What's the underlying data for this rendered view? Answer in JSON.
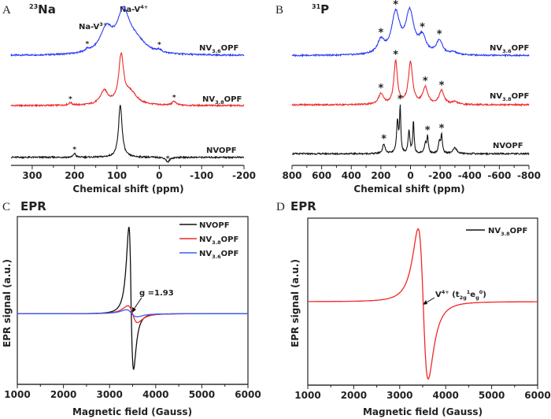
{
  "chart_data": [
    {
      "panel": "A",
      "type": "line",
      "title": {
        "sup": "23",
        "main": "Na"
      },
      "xlabel": "Chemical shift (ppm)",
      "ylabel": "",
      "xlim": [
        350,
        -200
      ],
      "xticks": [
        "300",
        "200",
        "100",
        "0",
        "-100",
        "-200"
      ],
      "xtick_values": [
        300,
        200,
        100,
        0,
        -100,
        -200
      ],
      "grid": false,
      "annotations": [
        {
          "main": "Na-V",
          "sup": "3+",
          "x": 125
        },
        {
          "main": "Na-V",
          "sup": "4+",
          "x": 85
        }
      ],
      "series": [
        {
          "label": {
            "main": "NV",
            "sub": "3.6",
            "tail": "OPF"
          },
          "color": "#2b3cf5",
          "offset": 6.8,
          "peaks": [
            [
              125,
              1.45,
              18
            ],
            [
              85,
              2.35,
              17
            ],
            [
              58,
              0.8,
              30
            ],
            [
              170,
              0.15,
              5
            ],
            [
              0,
              0.15,
              5
            ]
          ],
          "stars_ppm": [
            170,
            0
          ]
        },
        {
          "label": {
            "main": "NV",
            "sub": "3.8",
            "tail": "OPF"
          },
          "color": "#f02828",
          "offset": 3.7,
          "peaks": [
            [
              130,
              0.85,
              11
            ],
            [
              90,
              2.9,
              7
            ],
            [
              68,
              0.75,
              18
            ],
            [
              210,
              0.15,
              5
            ],
            [
              -35,
              0.25,
              5
            ]
          ],
          "stars_ppm": [
            210,
            -35
          ]
        },
        {
          "label": {
            "main": "NVOPF",
            "sub": "",
            "tail": ""
          },
          "color": "#111111",
          "offset": 0.5,
          "peaks": [
            [
              92,
              3.25,
              5
            ],
            [
              200,
              0.25,
              3
            ],
            [
              -20,
              -0.3,
              5
            ]
          ],
          "stars_ppm": [
            200,
            -20
          ]
        }
      ]
    },
    {
      "panel": "B",
      "type": "line",
      "title": {
        "sup": "31",
        "main": "P"
      },
      "xlabel": "Chemical shift (ppm)",
      "ylabel": "",
      "xlim": [
        800,
        -800
      ],
      "xticks": [
        "800",
        "600",
        "400",
        "200",
        "0",
        "-200",
        "-400",
        "-600",
        "-800"
      ],
      "xtick_values": [
        800,
        600,
        400,
        200,
        0,
        -200,
        -400,
        -600,
        -800
      ],
      "grid": false,
      "series": [
        {
          "label": {
            "main": "NV",
            "sub": "3.6",
            "tail": "OPF"
          },
          "color": "#2b3cf5",
          "offset": 6.8,
          "peaks": [
            [
              200,
              0.8,
              28
            ],
            [
              100,
              2.5,
              33
            ],
            [
              5,
              2.55,
              33
            ],
            [
              -80,
              1.0,
              28
            ],
            [
              -195,
              0.85,
              25
            ],
            [
              -290,
              0.15,
              25
            ]
          ],
          "stars_ppm": [
            200,
            100,
            -80,
            -195
          ]
        },
        {
          "label": {
            "main": "NV",
            "sub": "3.8",
            "tail": "OPF"
          },
          "color": "#f02828",
          "offset": 3.75,
          "peaks": [
            [
              200,
              0.65,
              20
            ],
            [
              100,
              2.7,
              14
            ],
            [
              0,
              2.6,
              17
            ],
            [
              -100,
              1.05,
              20
            ],
            [
              -210,
              0.85,
              20
            ],
            [
              -300,
              0.15,
              25
            ]
          ],
          "stars_ppm": [
            200,
            100,
            -100,
            -210
          ]
        },
        {
          "label": {
            "main": "NVOPF",
            "sub": "",
            "tail": ""
          },
          "color": "#111111",
          "offset": 0.72,
          "peaks": [
            [
              180,
              0.6,
              10
            ],
            [
              88,
              2.0,
              7
            ],
            [
              70,
              2.8,
              5
            ],
            [
              10,
              1.4,
              7
            ],
            [
              -20,
              2.0,
              5
            ],
            [
              -100,
              0.6,
              8
            ],
            [
              -115,
              1.0,
              6
            ],
            [
              -195,
              0.7,
              8
            ],
            [
              -210,
              1.1,
              6
            ],
            [
              -300,
              0.35,
              15
            ]
          ],
          "stars_ppm": [
            180,
            70,
            -115,
            -210
          ]
        }
      ]
    },
    {
      "panel": "C",
      "type": "line",
      "title": "EPR",
      "xlabel": "Magnetic field (Gauss)",
      "ylabel": "EPR signal (a.u.)",
      "xlim": [
        1000,
        6000
      ],
      "ylim": [
        -0.8,
        1.1
      ],
      "xticks": [
        "1000",
        "2000",
        "3000",
        "4000",
        "5000",
        "6000"
      ],
      "xtick_values": [
        1000,
        2000,
        3000,
        4000,
        5000,
        6000
      ],
      "grid": false,
      "legend": "top-right",
      "annotation": "g =1.93",
      "series": [
        {
          "label": {
            "main": "NVOPF",
            "sub": "",
            "tail": ""
          },
          "color": "#111111",
          "center": 3470,
          "linewidth_gauss": 87,
          "max": 0.98,
          "min": -0.63
        },
        {
          "label": {
            "main": "NV",
            "sub": "3.8",
            "tail": "OPF"
          },
          "color": "#f02828",
          "center": 3500,
          "linewidth_gauss": 180,
          "max": 0.09,
          "min": -0.1
        },
        {
          "label": {
            "main": "NV",
            "sub": "3.6",
            "tail": "OPF"
          },
          "color": "#3b5cf5",
          "center": 3480,
          "linewidth_gauss": 200,
          "max": 0.045,
          "min": -0.035
        }
      ]
    },
    {
      "panel": "D",
      "type": "line",
      "title": "EPR",
      "xlabel": "Magnetic field (Gauss)",
      "ylabel": "EPR signal (a.u.)",
      "xlim": [
        1000,
        6000
      ],
      "ylim": [
        -1.1,
        1.1
      ],
      "xticks": [
        "1000",
        "2000",
        "3000",
        "4000",
        "5000",
        "6000"
      ],
      "xtick_values": [
        1000,
        2000,
        3000,
        4000,
        5000,
        6000
      ],
      "grid": false,
      "legend": "top-right",
      "annotation": {
        "main": "V",
        "sup": "4+",
        "paren_open": " (t",
        "sub1": "2g",
        "sup1": "1",
        "mid": "e",
        "sub2": "g",
        "sup2": "0",
        "paren_close": ")"
      },
      "series": [
        {
          "label": {
            "main": "NV",
            "sub": "3.8",
            "tail": "OPF"
          },
          "color": "#f02828",
          "legend_color": "#111111",
          "center": 3510,
          "linewidth_gauss": 190,
          "max": 0.96,
          "min": -1.02
        }
      ]
    }
  ],
  "panel_letters": [
    "A",
    "B",
    "C",
    "D"
  ],
  "star_symbol": "*"
}
